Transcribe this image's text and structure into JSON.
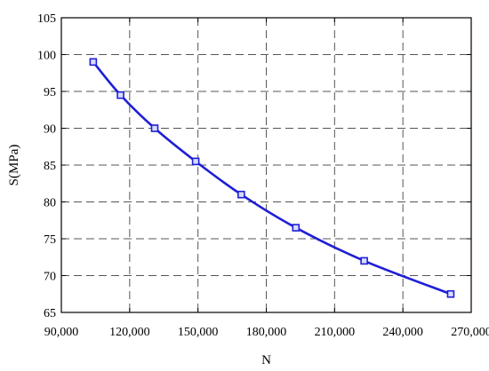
{
  "chart_data": {
    "type": "line",
    "title": "",
    "xlabel": "N",
    "ylabel": "S(MPa)",
    "xlim": [
      90000,
      270000
    ],
    "ylim": [
      65,
      105
    ],
    "xticks": [
      90000,
      120000,
      150000,
      180000,
      210000,
      240000,
      270000
    ],
    "xtick_labels": [
      "90,000",
      "120,000",
      "150,000",
      "180,000",
      "210,000",
      "240,000",
      "270,000"
    ],
    "yticks": [
      65,
      70,
      75,
      80,
      85,
      90,
      95,
      100,
      105
    ],
    "ytick_labels": [
      "65",
      "70",
      "75",
      "80",
      "85",
      "90",
      "95",
      "100",
      "105"
    ],
    "grid": true,
    "legend": "none",
    "series": [
      {
        "color": "#1f1fd6",
        "marker": "square",
        "line": "smooth",
        "points": [
          {
            "x": 104000,
            "y": 99.0
          },
          {
            "x": 116000,
            "y": 94.5
          },
          {
            "x": 131000,
            "y": 90.0
          },
          {
            "x": 149000,
            "y": 85.5
          },
          {
            "x": 169000,
            "y": 81.0
          },
          {
            "x": 193000,
            "y": 76.5
          },
          {
            "x": 223000,
            "y": 72.0
          },
          {
            "x": 261000,
            "y": 67.5
          }
        ]
      }
    ]
  }
}
